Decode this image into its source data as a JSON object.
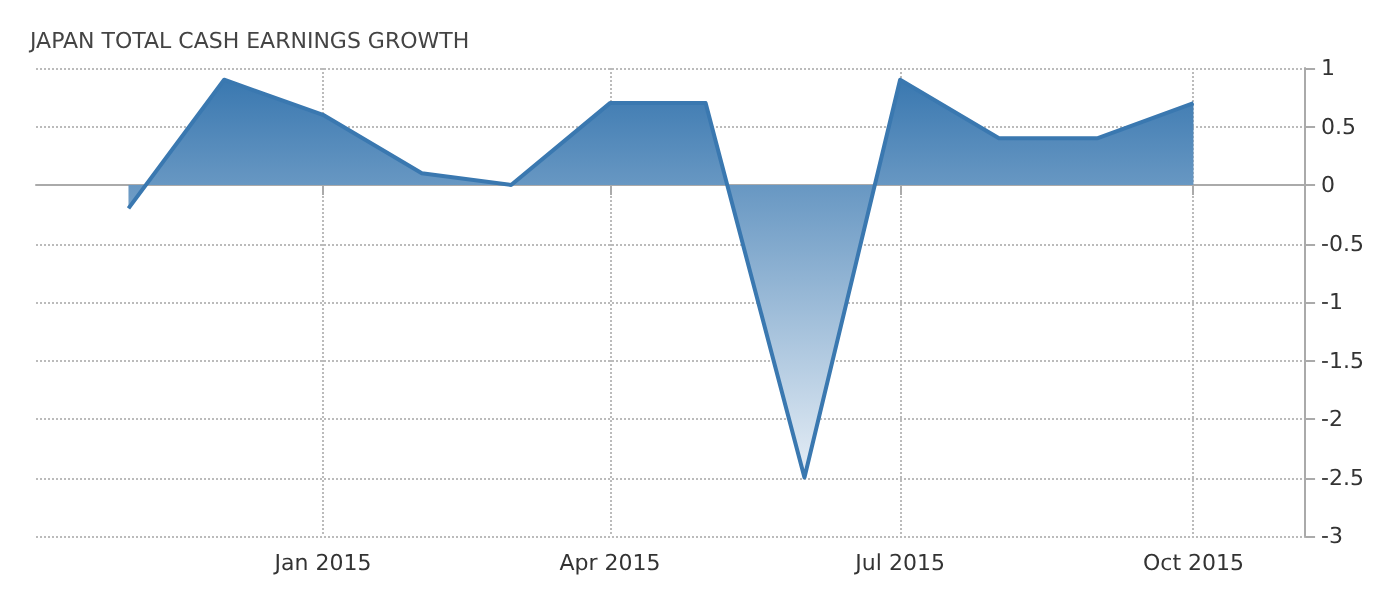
{
  "chart_data": {
    "type": "area",
    "title": "JAPAN TOTAL CASH EARNINGS GROWTH",
    "x": [
      "2014-11",
      "2014-12",
      "2015-01",
      "2015-02",
      "2015-03",
      "2015-04",
      "2015-05",
      "2015-06",
      "2015-07",
      "2015-08",
      "2015-09",
      "2015-10"
    ],
    "series": [
      {
        "color": "#3a78b0",
        "values": [
          -0.2,
          0.9,
          0.6,
          0.1,
          0,
          0.7,
          0.7,
          -2.5,
          0.9,
          0.4,
          0.4,
          0.7
        ]
      }
    ],
    "xlim": [
      "2014-10-03",
      "2015-11-05"
    ],
    "xticks": [
      {
        "value": "2015-01",
        "label": "Jan 2015"
      },
      {
        "value": "2015-04",
        "label": "Apr 2015"
      },
      {
        "value": "2015-07",
        "label": "Jul 2015"
      },
      {
        "value": "2015-10",
        "label": "Oct 2015"
      }
    ],
    "ylim": [
      -3,
      1
    ],
    "yticks": [
      -3,
      -2.5,
      -2,
      -1.5,
      -1,
      -0.5,
      0,
      0.5,
      1
    ],
    "grid": true,
    "marker": "none",
    "line_style": "solid"
  }
}
